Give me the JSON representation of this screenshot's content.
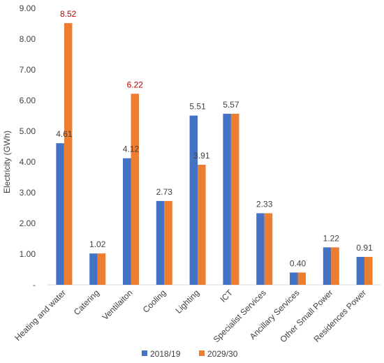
{
  "chart_data": {
    "type": "bar",
    "title": "",
    "xlabel": "",
    "ylabel": "Electricity (GWh)",
    "ylim": [
      0,
      9
    ],
    "yticks": [
      "-",
      "1.00",
      "2.00",
      "3.00",
      "4.00",
      "5.00",
      "6.00",
      "7.00",
      "8.00",
      "9.00"
    ],
    "grid": false,
    "legend": "bottom",
    "categories": [
      "Heating and water",
      "Catering",
      "Ventilaiton",
      "Cooling",
      "Lighting",
      "ICT",
      "Specialist Services",
      "Ancillary Services",
      "Other Small Power",
      "Residences Power"
    ],
    "series": [
      {
        "name": "2018/19",
        "color": "#4472C4",
        "values": [
          4.61,
          1.02,
          4.12,
          2.73,
          5.51,
          5.57,
          2.33,
          0.4,
          1.22,
          0.91
        ],
        "labels": [
          "4.61",
          "1.02",
          "4.12",
          "2.73",
          "5.51",
          "5.57",
          "2.33",
          "0.40",
          "1.22",
          "0.91"
        ]
      },
      {
        "name": "2029/30",
        "color": "#ED7D31",
        "values": [
          8.52,
          1.02,
          6.22,
          2.73,
          3.91,
          5.57,
          2.33,
          0.4,
          1.22,
          0.91
        ],
        "labels": [
          "8.52",
          "",
          "6.22",
          "",
          "3.91",
          "",
          "",
          "",
          "",
          ""
        ],
        "label_colors": [
          "#C00000",
          "",
          "#C00000",
          "",
          "#404040",
          "",
          "",
          "",
          "",
          ""
        ]
      }
    ]
  }
}
